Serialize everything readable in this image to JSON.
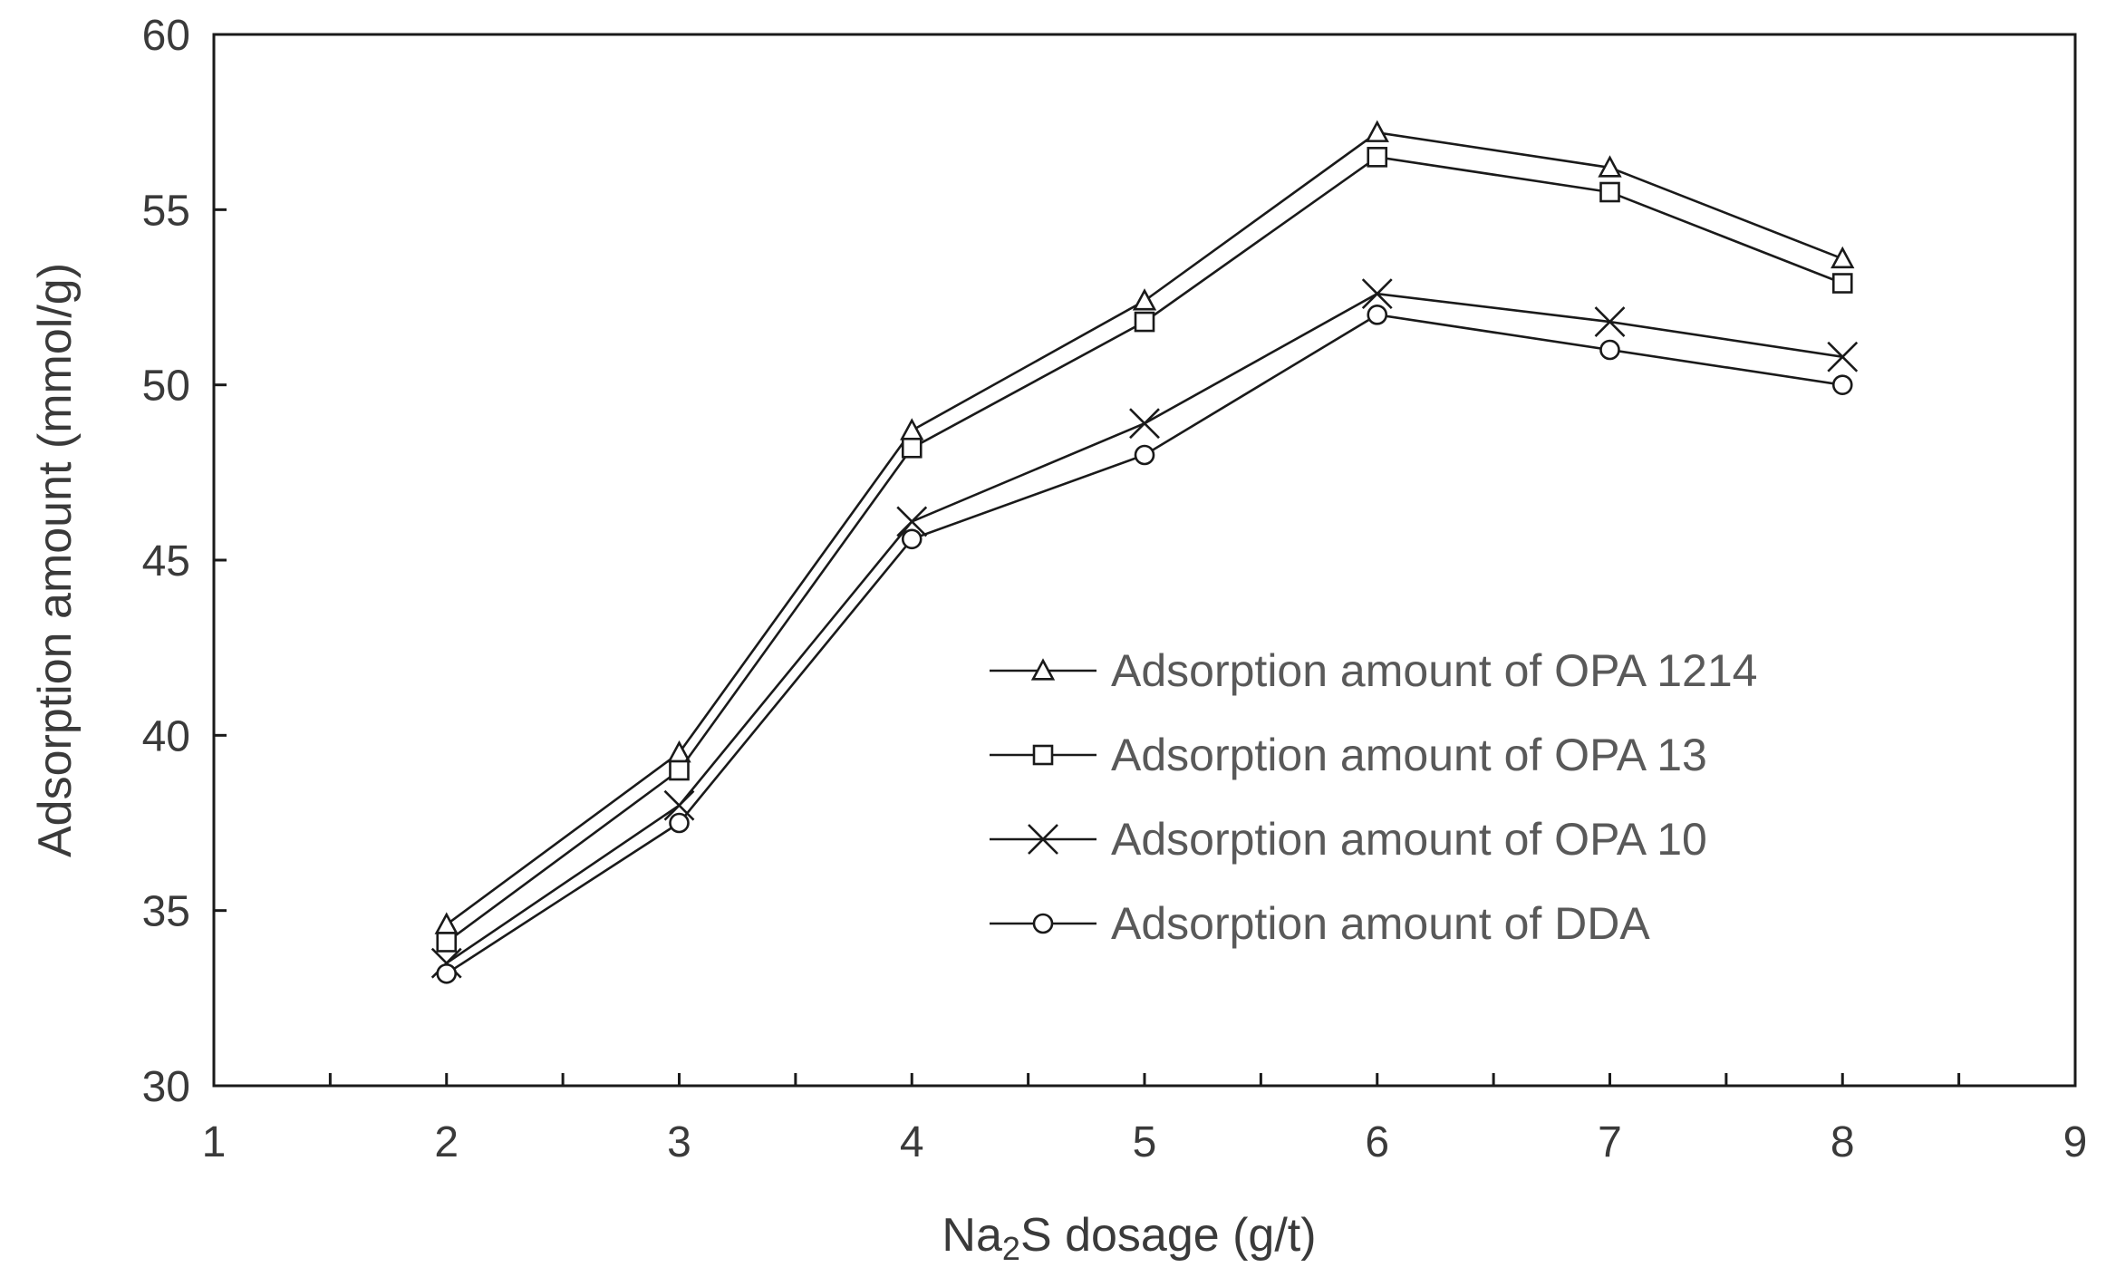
{
  "chart_data": {
    "type": "line",
    "title": "",
    "xlabel_parts": {
      "pre": "Na",
      "sub": "2",
      "post": "S dosage (g/t)"
    },
    "ylabel": "Adsorption amount (mmol/g)",
    "xlim": [
      1,
      9
    ],
    "ylim": [
      30,
      60
    ],
    "xticks": [
      "1",
      "2",
      "3",
      "4",
      "5",
      "6",
      "7",
      "8",
      "9"
    ],
    "yticks": [
      "30",
      "35",
      "40",
      "45",
      "50",
      "55",
      "60"
    ],
    "grid": false,
    "legend_position": "center-right",
    "x": [
      2,
      3,
      4,
      5,
      6,
      7,
      8
    ],
    "series": [
      {
        "name": "Adsorption amount of OPA 1214",
        "marker": "triangle",
        "values": [
          34.6,
          39.5,
          48.7,
          52.4,
          57.2,
          56.2,
          53.6
        ]
      },
      {
        "name": "Adsorption amount of OPA 13",
        "marker": "square",
        "values": [
          34.1,
          39.0,
          48.2,
          51.8,
          56.5,
          55.5,
          52.9
        ]
      },
      {
        "name": "Adsorption amount of OPA 10",
        "marker": "x",
        "values": [
          33.5,
          38.0,
          46.1,
          48.9,
          52.6,
          51.8,
          50.8
        ]
      },
      {
        "name": "Adsorption amount of DDA",
        "marker": "circle",
        "values": [
          33.2,
          37.5,
          45.6,
          48.0,
          52.0,
          51.0,
          50.0
        ]
      }
    ]
  },
  "colors": {
    "line": "#1a1a1a",
    "axis": "#1a1a1a",
    "text": "#3a3a3a",
    "legend_text": "#595959"
  }
}
